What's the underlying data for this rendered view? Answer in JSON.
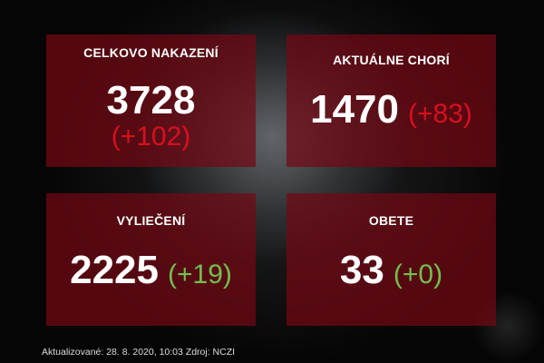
{
  "cards": [
    {
      "label": "CELKOVO NAKAZENÍ",
      "value": "3728",
      "delta": "(+102)",
      "delta_color": "#d8101e"
    },
    {
      "label": "AKTUÁLNE CHORÍ",
      "value": "1470",
      "delta": "(+83)",
      "delta_color": "#d8101e"
    },
    {
      "label": "VYLIEČENÍ",
      "value": "2225",
      "delta": "(+19)",
      "delta_color": "#72bf4e"
    },
    {
      "label": "OBETE",
      "value": "33",
      "delta": "(+0)",
      "delta_color": "#72bf4e"
    }
  ],
  "footer": "Aktualizované: 28. 8. 2020, 10:03 Zdroj: NCZI",
  "colors": {
    "card_bg": "#730814",
    "background": "#050505"
  }
}
